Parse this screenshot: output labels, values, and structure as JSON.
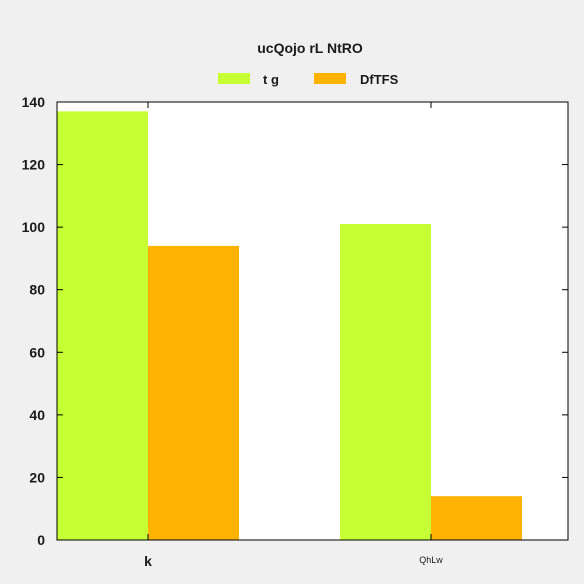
{
  "chart_data": {
    "type": "bar",
    "title": "ucQojo rL NtRO",
    "xlabel": "",
    "ylabel": "",
    "categories": [
      "k",
      "QhLw"
    ],
    "series": [
      {
        "name": "t g",
        "values": [
          137,
          101
        ],
        "color": "#c6ff33"
      },
      {
        "name": "DfTFS",
        "values": [
          94,
          14
        ],
        "color": "#ffb300"
      }
    ],
    "ylim": [
      0,
      140
    ],
    "yticks": [
      0,
      20,
      40,
      60,
      80,
      100,
      120,
      140
    ],
    "legend_position": "top-center",
    "grid": false
  }
}
